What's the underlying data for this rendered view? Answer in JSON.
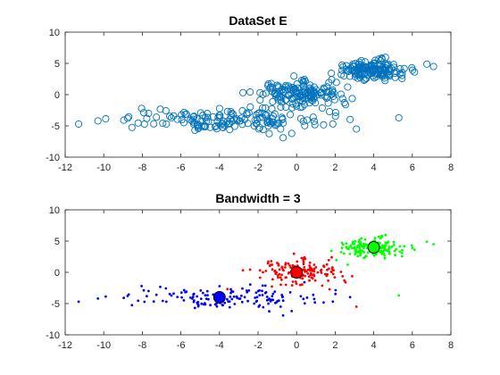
{
  "chart_data": [
    {
      "type": "scatter",
      "title": "DataSet E",
      "xlabel": "",
      "ylabel": "",
      "xlim": [
        -12,
        8
      ],
      "ylim": [
        -10,
        10
      ],
      "xticks": [
        -12,
        -10,
        -8,
        -6,
        -4,
        -2,
        0,
        2,
        4,
        6,
        8
      ],
      "yticks": [
        -10,
        -5,
        0,
        5,
        10
      ],
      "grid": false,
      "marker": "open-circle",
      "color": "#0072BD",
      "series": [
        {
          "clusters": [
            {
              "center": [
                -4,
                -4
              ],
              "spread": [
                2.6,
                0.9
              ],
              "count": 150
            },
            {
              "center": [
                0,
                0
              ],
              "spread": [
                1.1,
                1.0
              ],
              "count": 150
            },
            {
              "center": [
                4,
                4
              ],
              "spread": [
                0.9,
                0.8
              ],
              "count": 150
            }
          ],
          "extra_points": [
            [
              -11.3,
              -4.7
            ],
            [
              -10.3,
              -4.2
            ],
            [
              7.1,
              4.5
            ],
            [
              5.3,
              -3.7
            ],
            [
              3.1,
              -5.5
            ],
            [
              -0.7,
              -6.9
            ],
            [
              -2.2,
              -5.0
            ]
          ]
        }
      ]
    },
    {
      "type": "scatter",
      "title": "Bandwidth = 3",
      "xlabel": "",
      "ylabel": "",
      "xlim": [
        -12,
        8
      ],
      "ylim": [
        -10,
        10
      ],
      "xticks": [
        -12,
        -10,
        -8,
        -6,
        -4,
        -2,
        0,
        2,
        4,
        6,
        8
      ],
      "yticks": [
        -10,
        -5,
        0,
        5,
        10
      ],
      "grid": false,
      "marker": "dot",
      "series": [
        {
          "color": "#0000FF",
          "center": [
            -4,
            -4
          ],
          "spread": [
            2.6,
            0.9
          ],
          "count": 150,
          "extra_points": [
            [
              -11.3,
              -4.7
            ],
            [
              -10.3,
              -4.2
            ],
            [
              -0.7,
              -6.9
            ],
            [
              -2.2,
              -5.0
            ]
          ]
        },
        {
          "color": "#FF0000",
          "center": [
            0,
            0
          ],
          "spread": [
            1.1,
            1.0
          ],
          "count": 150,
          "extra_points": [
            [
              3.1,
              -5.5
            ]
          ]
        },
        {
          "color": "#00FF00",
          "center": [
            4,
            4
          ],
          "spread": [
            0.9,
            0.8
          ],
          "count": 150,
          "extra_points": [
            [
              7.1,
              4.5
            ],
            [
              5.3,
              -3.7
            ]
          ]
        }
      ],
      "centroids": [
        {
          "x": -4,
          "y": -4,
          "color": "#0000FF"
        },
        {
          "x": 0,
          "y": 0,
          "color": "#FF0000"
        },
        {
          "x": 4,
          "y": 4,
          "color": "#00FF00"
        }
      ]
    }
  ]
}
